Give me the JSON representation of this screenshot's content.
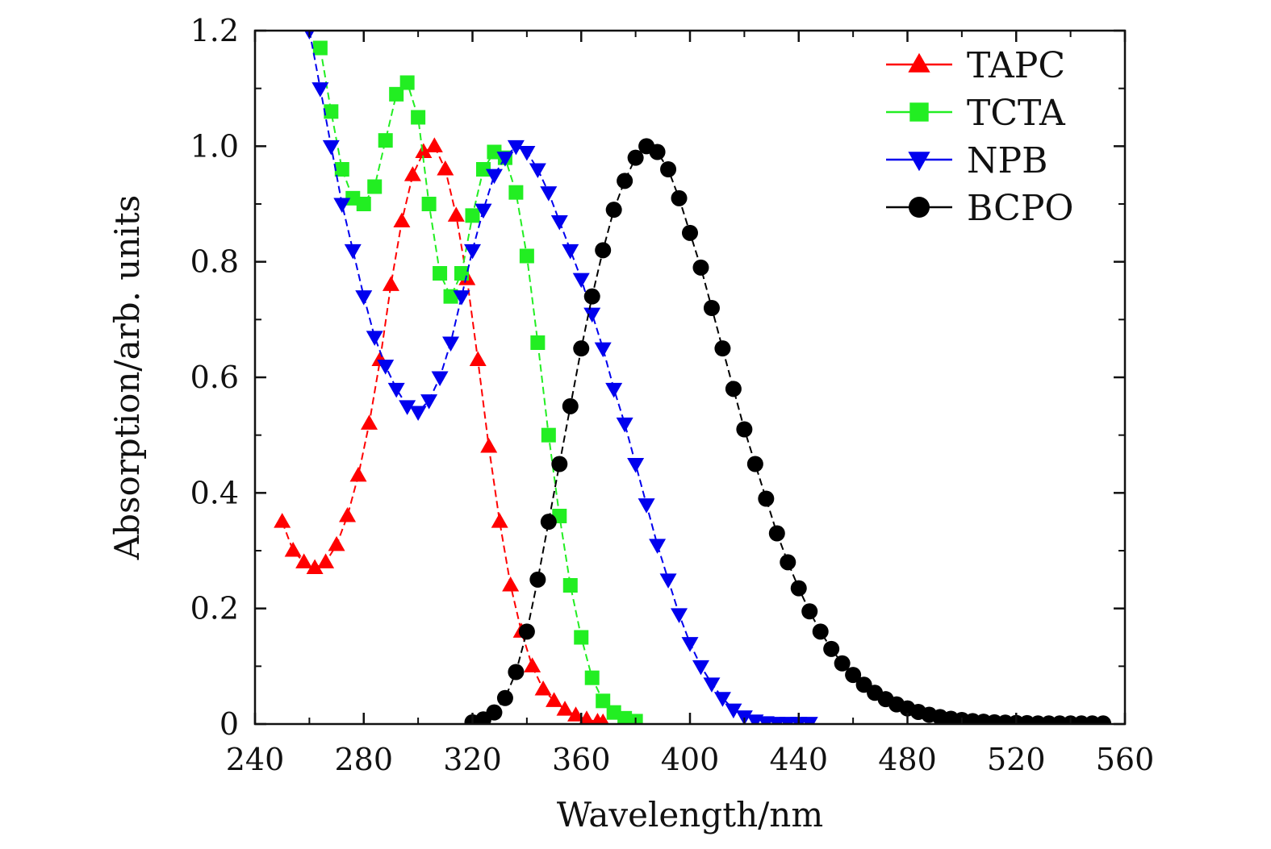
{
  "chart_data": {
    "type": "scatter",
    "title": "",
    "xlabel": "Wavelength/nm",
    "ylabel": "Absorption/arb. units",
    "xlim": [
      240,
      560
    ],
    "ylim": [
      0,
      1.2
    ],
    "xticks": [
      240,
      280,
      320,
      360,
      400,
      440,
      480,
      520,
      560
    ],
    "xtick_labels": [
      "240",
      "280",
      "320",
      "360",
      "400",
      "440",
      "480",
      "520",
      "560"
    ],
    "yticks": [
      0,
      0.2,
      0.4,
      0.6,
      0.8,
      1.0,
      1.2
    ],
    "ytick_labels": [
      "0",
      "0.2",
      "0.4",
      "0.6",
      "0.8",
      "1.0",
      "1.2"
    ],
    "grid": false,
    "legend_position": "top-right",
    "series": [
      {
        "name": "TAPC",
        "color": "#ff0000",
        "marker": "triangle-up",
        "x": [
          250,
          254,
          258,
          262,
          266,
          270,
          274,
          278,
          282,
          286,
          290,
          294,
          298,
          302,
          306,
          310,
          314,
          318,
          322,
          326,
          330,
          334,
          338,
          342,
          346,
          350,
          354,
          358,
          362,
          366,
          368
        ],
        "values": [
          0.35,
          0.3,
          0.28,
          0.27,
          0.28,
          0.31,
          0.36,
          0.43,
          0.52,
          0.63,
          0.76,
          0.87,
          0.95,
          0.99,
          1.0,
          0.96,
          0.88,
          0.77,
          0.63,
          0.48,
          0.35,
          0.24,
          0.16,
          0.1,
          0.06,
          0.04,
          0.025,
          0.015,
          0.008,
          0.004,
          0.003
        ]
      },
      {
        "name": "TCTA",
        "color": "#22ee22",
        "marker": "square",
        "x": [
          264,
          268,
          272,
          276,
          280,
          284,
          288,
          292,
          296,
          300,
          304,
          308,
          312,
          316,
          320,
          324,
          328,
          332,
          336,
          340,
          344,
          348,
          352,
          356,
          360,
          364,
          368,
          372,
          376,
          380
        ],
        "values": [
          1.17,
          1.06,
          0.96,
          0.91,
          0.9,
          0.93,
          1.01,
          1.09,
          1.11,
          1.05,
          0.9,
          0.78,
          0.74,
          0.78,
          0.88,
          0.96,
          0.99,
          0.98,
          0.92,
          0.81,
          0.66,
          0.5,
          0.36,
          0.24,
          0.15,
          0.08,
          0.04,
          0.02,
          0.01,
          0.005
        ]
      },
      {
        "name": "NPB",
        "color": "#0000ee",
        "marker": "triangle-down",
        "x": [
          260,
          264,
          268,
          272,
          276,
          280,
          284,
          288,
          292,
          296,
          300,
          304,
          308,
          312,
          316,
          320,
          324,
          328,
          332,
          336,
          340,
          344,
          348,
          352,
          356,
          360,
          364,
          368,
          372,
          376,
          380,
          384,
          388,
          392,
          396,
          400,
          404,
          408,
          412,
          416,
          420,
          424,
          428,
          432,
          436,
          440,
          444
        ],
        "values": [
          1.2,
          1.1,
          1.0,
          0.9,
          0.82,
          0.74,
          0.67,
          0.62,
          0.58,
          0.55,
          0.54,
          0.56,
          0.6,
          0.66,
          0.74,
          0.82,
          0.89,
          0.95,
          0.98,
          1.0,
          0.99,
          0.96,
          0.92,
          0.87,
          0.82,
          0.77,
          0.71,
          0.65,
          0.58,
          0.52,
          0.45,
          0.38,
          0.31,
          0.25,
          0.19,
          0.14,
          0.1,
          0.07,
          0.045,
          0.025,
          0.013,
          0.006,
          0.003,
          0.002,
          0.002,
          0.002,
          0.002
        ]
      },
      {
        "name": "BCPO",
        "color": "#000000",
        "marker": "circle",
        "x": [
          320,
          324,
          328,
          332,
          336,
          340,
          344,
          348,
          352,
          356,
          360,
          364,
          368,
          372,
          376,
          380,
          384,
          388,
          392,
          396,
          400,
          404,
          408,
          412,
          416,
          420,
          424,
          428,
          432,
          436,
          440,
          444,
          448,
          452,
          456,
          460,
          464,
          468,
          472,
          476,
          480,
          484,
          488,
          492,
          496,
          500,
          504,
          508,
          512,
          516,
          520,
          524,
          528,
          532,
          536,
          540,
          544,
          548,
          552
        ],
        "values": [
          0.003,
          0.008,
          0.02,
          0.045,
          0.09,
          0.16,
          0.25,
          0.35,
          0.45,
          0.55,
          0.65,
          0.74,
          0.82,
          0.89,
          0.94,
          0.98,
          1.0,
          0.99,
          0.96,
          0.91,
          0.85,
          0.79,
          0.72,
          0.65,
          0.58,
          0.51,
          0.45,
          0.39,
          0.33,
          0.28,
          0.235,
          0.195,
          0.16,
          0.13,
          0.105,
          0.085,
          0.068,
          0.054,
          0.043,
          0.034,
          0.027,
          0.021,
          0.016,
          0.012,
          0.009,
          0.007,
          0.005,
          0.004,
          0.003,
          0.0025,
          0.002,
          0.0015,
          0.001,
          0.001,
          0.001,
          0.001,
          0.001,
          0.001,
          0.001
        ]
      }
    ]
  }
}
